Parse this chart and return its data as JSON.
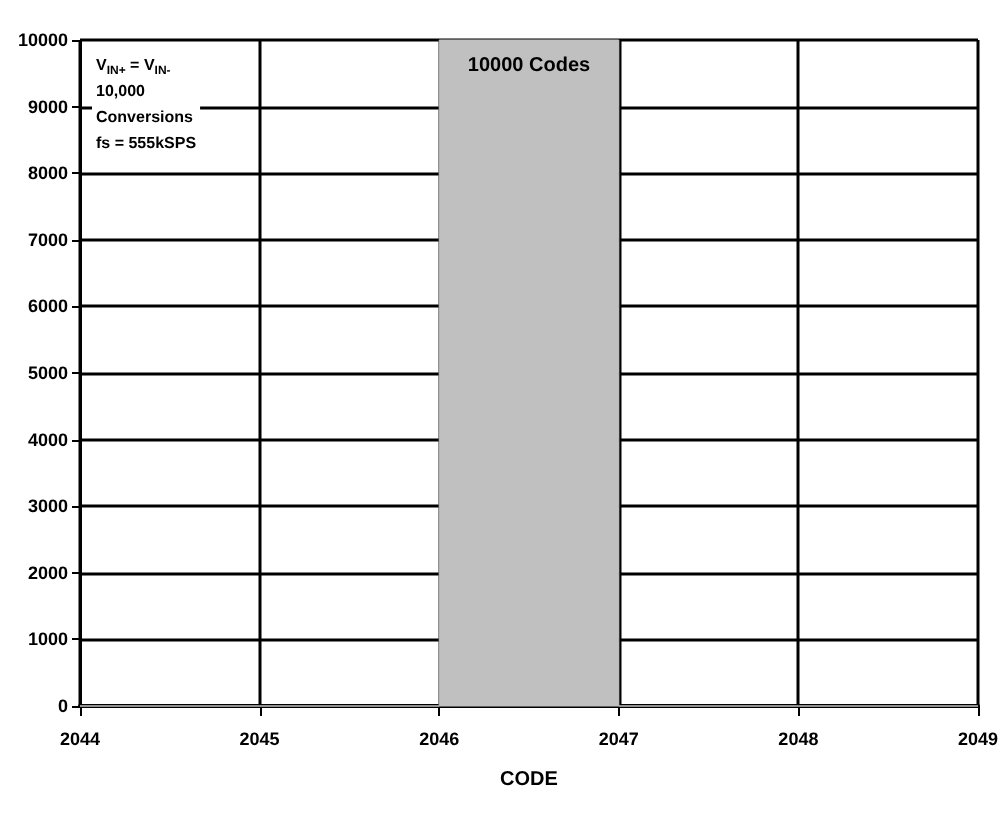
{
  "chart_data": {
    "type": "histogram",
    "xlabel": "CODE",
    "bins": [
      2044,
      2045,
      2046,
      2047,
      2048,
      2049
    ],
    "values": [
      0,
      0,
      10000,
      0,
      0
    ],
    "value_labels": [
      null,
      null,
      "10000 Codes",
      null,
      null
    ],
    "color": "#c0c0c0",
    "xlim": [
      2044,
      2049
    ],
    "xticks": [
      2044,
      2045,
      2046,
      2047,
      2048,
      2049
    ],
    "ylim": [
      0,
      10000
    ],
    "yticks": [
      0,
      1000,
      2000,
      3000,
      4000,
      5000,
      6000,
      7000,
      8000,
      9000,
      10000
    ],
    "grid": true,
    "annotations": [
      "V$_{IN+}$ = V$_{IN-}$",
      "10,000",
      "Conversions",
      "fs = 555kSPS"
    ]
  }
}
